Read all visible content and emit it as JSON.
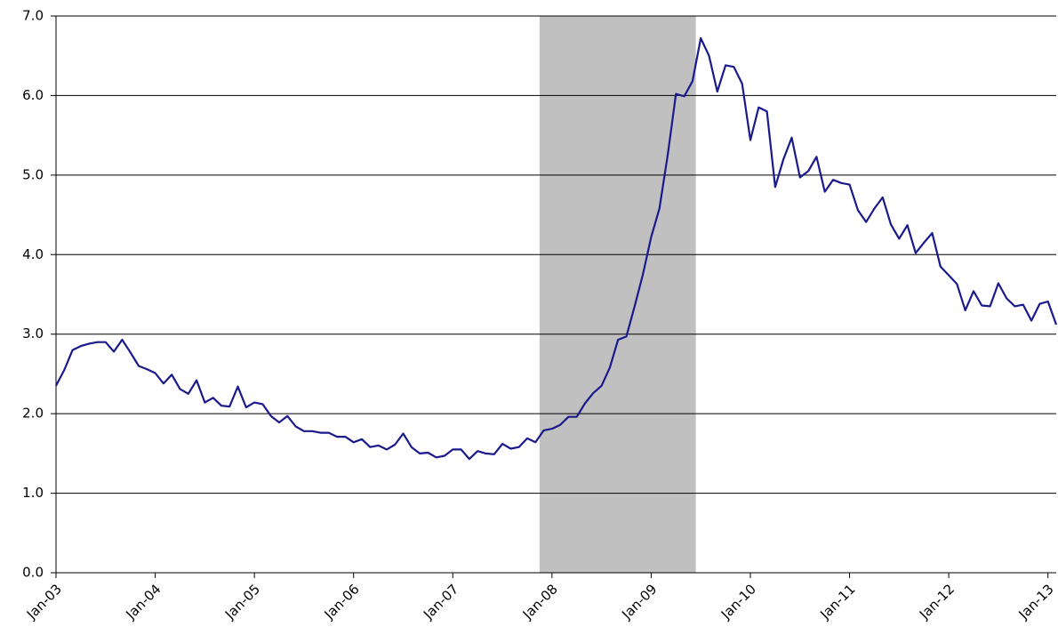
{
  "chart_data": {
    "type": "line",
    "categories": [
      "Jan-03",
      null,
      null,
      null,
      null,
      null,
      null,
      null,
      null,
      null,
      null,
      null,
      "Jan-04",
      null,
      null,
      null,
      null,
      null,
      null,
      null,
      null,
      null,
      null,
      null,
      "Jan-05",
      null,
      null,
      null,
      null,
      null,
      null,
      null,
      null,
      null,
      null,
      null,
      "Jan-06",
      null,
      null,
      null,
      null,
      null,
      null,
      null,
      null,
      null,
      null,
      null,
      "Jan-07",
      null,
      null,
      null,
      null,
      null,
      null,
      null,
      null,
      null,
      null,
      null,
      "Jan-08",
      null,
      null,
      null,
      null,
      null,
      null,
      null,
      null,
      null,
      null,
      null,
      "Jan-09",
      null,
      null,
      null,
      null,
      null,
      null,
      null,
      null,
      null,
      null,
      null,
      "Jan-10",
      null,
      null,
      null,
      null,
      null,
      null,
      null,
      null,
      null,
      null,
      null,
      "Jan-11",
      null,
      null,
      null,
      null,
      null,
      null,
      null,
      null,
      null,
      null,
      null,
      "Jan-12",
      null,
      null,
      null,
      null,
      null,
      null,
      null,
      null,
      null,
      null,
      null,
      "Jan-13",
      null
    ],
    "series": [
      {
        "color": "#1a1a8c",
        "values": [
          2.35,
          2.55,
          2.8,
          2.85,
          2.88,
          2.9,
          2.9,
          2.78,
          2.93,
          2.77,
          2.6,
          2.56,
          2.51,
          2.38,
          2.49,
          2.31,
          2.25,
          2.42,
          2.14,
          2.2,
          2.1,
          2.09,
          2.34,
          2.08,
          2.14,
          2.12,
          1.97,
          1.89,
          1.97,
          1.84,
          1.78,
          1.78,
          1.76,
          1.76,
          1.71,
          1.71,
          1.64,
          1.68,
          1.58,
          1.6,
          1.55,
          1.61,
          1.75,
          1.58,
          1.5,
          1.51,
          1.45,
          1.47,
          1.55,
          1.55,
          1.43,
          1.53,
          1.5,
          1.49,
          1.62,
          1.56,
          1.58,
          1.69,
          1.64,
          1.79,
          1.81,
          1.86,
          1.96,
          1.96,
          2.13,
          2.26,
          2.35,
          2.58,
          2.93,
          2.97,
          3.35,
          3.75,
          4.22,
          4.58,
          5.25,
          6.02,
          5.99,
          6.18,
          6.72,
          6.5,
          6.05,
          6.38,
          6.36,
          6.15,
          5.44,
          5.85,
          5.8,
          4.85,
          5.2,
          5.47,
          4.97,
          5.05,
          5.23,
          4.79,
          4.94,
          4.9,
          4.88,
          4.56,
          4.41,
          4.58,
          4.72,
          4.38,
          4.2,
          4.37,
          4.02,
          4.15,
          4.27,
          3.85,
          3.74,
          3.63,
          3.3,
          3.54,
          3.36,
          3.35,
          3.64,
          3.45,
          3.35,
          3.37,
          3.17,
          3.38,
          3.41,
          3.12
        ]
      }
    ],
    "shaded_range": [
      58.5,
      77.4
    ],
    "shade_color": "#c0c0c0",
    "ylim": [
      0,
      7
    ],
    "yticks": [
      {
        "value": 0,
        "label": "0.0"
      },
      {
        "value": 1,
        "label": "1.0"
      },
      {
        "value": 2,
        "label": "2.0"
      },
      {
        "value": 3,
        "label": "3.0"
      },
      {
        "value": 4,
        "label": "4.0"
      },
      {
        "value": 5,
        "label": "5.0"
      },
      {
        "value": 6,
        "label": "6.0"
      },
      {
        "value": 7,
        "label": "7.0"
      }
    ],
    "grid": true
  }
}
